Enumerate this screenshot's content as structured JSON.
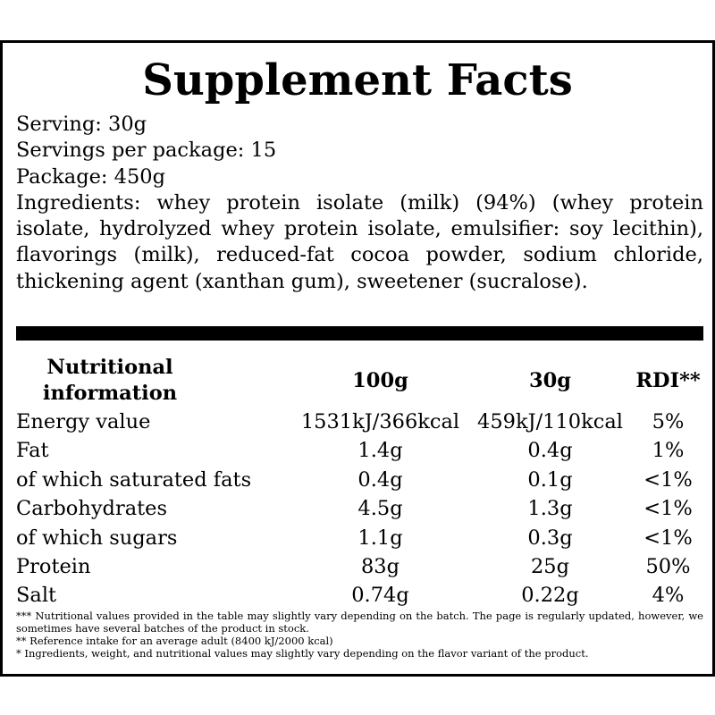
{
  "title": "Supplement Facts",
  "info": {
    "serving": "Serving: 30g",
    "servings_per_package": "Servings per package: 15",
    "package": "Package: 450g",
    "ingredients": "Ingredients: whey protein isolate (milk) (94%) (whey protein isolate, hydrolyzed whey protein isolate, emulsifier: soy lecithin), flavorings (milk), reduced-fat cocoa powder, sodium chloride, thickening agent (xanthan gum), sweetener (sucralose)."
  },
  "table": {
    "headers": {
      "label_line1": "Nutritional",
      "label_line2": "information",
      "per100g": "100g",
      "per30g": "30g",
      "rdi": "RDI**"
    },
    "rows": [
      {
        "label": "Energy value",
        "per100g": "1531kJ/366kcal",
        "per30g": "459kJ/110kcal",
        "rdi": "5%"
      },
      {
        "label": "Fat",
        "per100g": "1.4g",
        "per30g": "0.4g",
        "rdi": "1%"
      },
      {
        "label": "of which saturated fats",
        "per100g": "0.4g",
        "per30g": "0.1g",
        "rdi": "<1%"
      },
      {
        "label": "Carbohydrates",
        "per100g": "4.5g",
        "per30g": "1.3g",
        "rdi": "<1%"
      },
      {
        "label": "of which sugars",
        "per100g": "1.1g",
        "per30g": "0.3g",
        "rdi": "<1%"
      },
      {
        "label": "Protein",
        "per100g": "83g",
        "per30g": "25g",
        "rdi": "50%"
      },
      {
        "label": "Salt",
        "per100g": "0.74g",
        "per30g": "0.22g",
        "rdi": "4%"
      }
    ]
  },
  "footnotes": [
    "*** Nutritional values provided in the table may slightly vary depending on the batch. The page is regularly updated, however, we sometimes have several batches of the product in stock.",
    "** Reference intake for an average adult (8400 kJ/2000 kcal)",
    "* Ingredients, weight, and nutritional values may slightly vary depending on the flavor variant of the product."
  ]
}
